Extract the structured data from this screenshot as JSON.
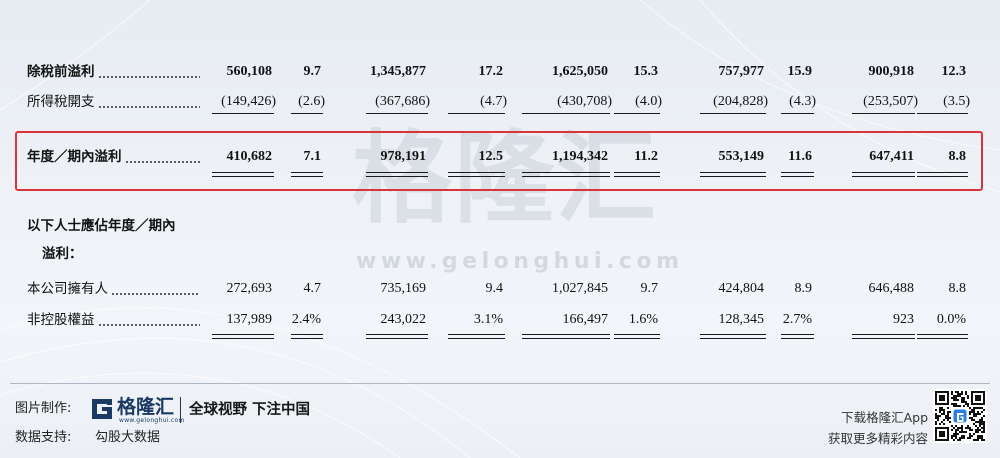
{
  "table": {
    "profit_before_tax": {
      "label": "除稅前溢利",
      "values": [
        "560,108",
        "9.7",
        "1,345,877",
        "17.2",
        "1,625,050",
        "15.3",
        "757,977",
        "15.9",
        "900,918",
        "12.3"
      ]
    },
    "income_tax": {
      "label": "所得稅開支",
      "values": [
        "(149,426)",
        "(2.6)",
        "(367,686)",
        "(4.7)",
        "(430,708)",
        "(4.0)",
        "(204,828)",
        "(4.3)",
        "(253,507)",
        "(3.5)"
      ]
    },
    "profit_for_period": {
      "label": "年度／期內溢利",
      "values": [
        "410,682",
        "7.1",
        "978,191",
        "12.5",
        "1,194,342",
        "11.2",
        "553,149",
        "11.6",
        "647,411",
        "8.8"
      ]
    },
    "attributable": {
      "label_line1": "以下人士應佔年度／期內",
      "label_line2": "溢利："
    },
    "owners": {
      "label": "本公司擁有人",
      "values": [
        "272,693",
        "4.7",
        "735,169",
        "9.4",
        "1,027,845",
        "9.7",
        "424,804",
        "8.9",
        "646,488",
        "8.8"
      ]
    },
    "non_controlling": {
      "label": "非控股權益",
      "values": [
        "137,989",
        "2.4%",
        "243,022",
        "3.1%",
        "166,497",
        "1.6%",
        "128,345",
        "2.7%",
        "923",
        "0.0%"
      ]
    }
  },
  "watermark": {
    "name": "格隆汇",
    "url": "www.gelonghui.com"
  },
  "footer": {
    "made_by_label": "图片制作:",
    "logo_name": "格隆汇",
    "logo_url": "www.gelonghui.com",
    "slogan": "全球视野 下注中国",
    "data_support_label": "数据支持:",
    "data_support_value": "勾股大数据",
    "download_line": "下载格隆汇App",
    "more_line": "获取更多精彩内容"
  },
  "colors": {
    "highlight_box": "#d7343b",
    "brand": "#1b3a63",
    "qr_logo": "#2a7de1"
  },
  "icons": {
    "logo": "gelonghui-logo-icon",
    "qr": "qr-code"
  }
}
